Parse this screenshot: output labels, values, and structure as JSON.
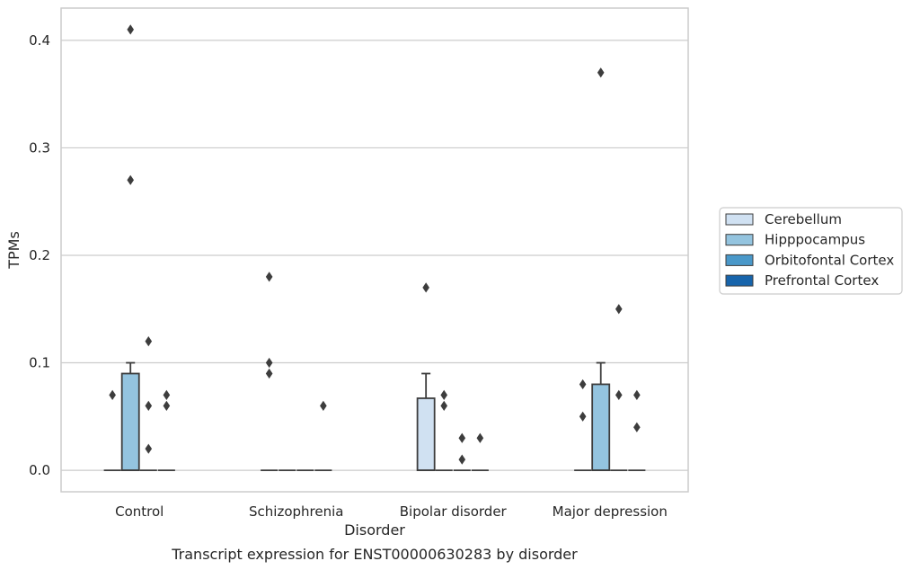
{
  "chart_data": {
    "type": "box",
    "title": "",
    "caption": "Transcript expression for ENST00000630283 by disorder",
    "xlabel": "Disorder",
    "ylabel": "TPMs",
    "ylim": [
      -0.02,
      0.43
    ],
    "yticks": [
      0.0,
      0.1,
      0.2,
      0.3,
      0.4
    ],
    "ytick_labels": [
      "0.0",
      "0.1",
      "0.2",
      "0.3",
      "0.4"
    ],
    "grid": true,
    "legend_position": "right",
    "categories": [
      "Control",
      "Schizophrenia",
      "Bipolar disorder",
      "Major depression"
    ],
    "series": [
      {
        "name": "Cerebellum",
        "color": "#d0e1f2",
        "boxes": [
          {
            "q1": 0,
            "median": 0,
            "q3": 0,
            "whisker_low": 0,
            "whisker_high": 0,
            "outliers": [
              0.07
            ]
          },
          {
            "q1": 0,
            "median": 0,
            "q3": 0,
            "whisker_low": 0,
            "whisker_high": 0,
            "outliers": [
              0.18,
              0.1,
              0.09
            ]
          },
          {
            "q1": 0,
            "median": 0,
            "q3": 0.067,
            "whisker_low": 0,
            "whisker_high": 0.09,
            "outliers": [
              0.17
            ]
          },
          {
            "q1": 0,
            "median": 0,
            "q3": 0,
            "whisker_low": 0,
            "whisker_high": 0,
            "outliers": [
              0.08,
              0.05
            ]
          }
        ]
      },
      {
        "name": "Hipppocampus",
        "color": "#94c4df",
        "boxes": [
          {
            "q1": 0,
            "median": 0,
            "q3": 0.09,
            "whisker_low": 0,
            "whisker_high": 0.1,
            "outliers": [
              0.41,
              0.27
            ]
          },
          {
            "q1": 0,
            "median": 0,
            "q3": 0,
            "whisker_low": 0,
            "whisker_high": 0,
            "outliers": []
          },
          {
            "q1": 0,
            "median": 0,
            "q3": 0,
            "whisker_low": 0,
            "whisker_high": 0,
            "outliers": [
              0.07,
              0.06
            ]
          },
          {
            "q1": 0,
            "median": 0,
            "q3": 0.08,
            "whisker_low": 0,
            "whisker_high": 0.1,
            "outliers": [
              0.37
            ]
          }
        ]
      },
      {
        "name": "Orbitofontal Cortex",
        "color": "#4a98c9",
        "boxes": [
          {
            "q1": 0,
            "median": 0,
            "q3": 0,
            "whisker_low": 0,
            "whisker_high": 0,
            "outliers": [
              0.12,
              0.06,
              0.02
            ]
          },
          {
            "q1": 0,
            "median": 0,
            "q3": 0,
            "whisker_low": 0,
            "whisker_high": 0,
            "outliers": []
          },
          {
            "q1": 0,
            "median": 0,
            "q3": 0,
            "whisker_low": 0,
            "whisker_high": 0,
            "outliers": [
              0.03,
              0.01
            ]
          },
          {
            "q1": 0,
            "median": 0,
            "q3": 0,
            "whisker_low": 0,
            "whisker_high": 0,
            "outliers": [
              0.15,
              0.07
            ]
          }
        ]
      },
      {
        "name": "Prefrontal Cortex",
        "color": "#1764ab",
        "boxes": [
          {
            "q1": 0,
            "median": 0,
            "q3": 0,
            "whisker_low": 0,
            "whisker_high": 0,
            "outliers": [
              0.07,
              0.06
            ]
          },
          {
            "q1": 0,
            "median": 0,
            "q3": 0,
            "whisker_low": 0,
            "whisker_high": 0,
            "outliers": [
              0.06
            ]
          },
          {
            "q1": 0,
            "median": 0,
            "q3": 0,
            "whisker_low": 0,
            "whisker_high": 0,
            "outliers": [
              0.03
            ]
          },
          {
            "q1": 0,
            "median": 0,
            "q3": 0,
            "whisker_low": 0,
            "whisker_high": 0,
            "outliers": [
              0.07,
              0.04
            ]
          }
        ]
      }
    ]
  }
}
